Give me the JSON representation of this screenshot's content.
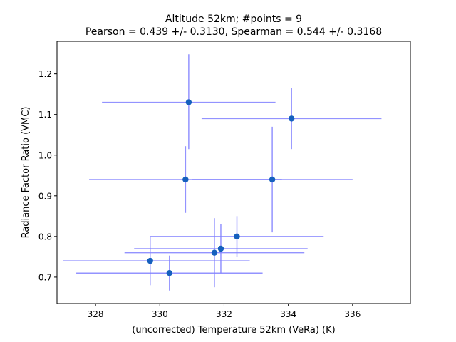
{
  "chart_data": {
    "type": "scatter",
    "title_line1": "Altitude 52km;  #points =  9",
    "title_line2": "Pearson =  0.439 +/-  0.3130, Spearman =  0.544 +/-  0.3168",
    "xlabel": "(uncorrected) Temperature 52km (VeRa) (K)",
    "ylabel": "Radiance Factor Ratio (VMC)",
    "xlim": [
      326.8,
      337.8
    ],
    "ylim": [
      0.635,
      1.28
    ],
    "x_ticks": [
      328,
      330,
      332,
      334,
      336
    ],
    "y_ticks": [
      0.7,
      0.8,
      0.9,
      1.0,
      1.1,
      1.2
    ],
    "x_tick_labels": [
      "328",
      "330",
      "332",
      "334",
      "336"
    ],
    "y_tick_labels": [
      "0.7",
      "0.8",
      "0.9",
      "1.0",
      "1.1",
      "1.2"
    ],
    "grid": false,
    "marker_color": "#1560bd",
    "errorbar_color": "#8080ff",
    "points": [
      {
        "x": 330.9,
        "y": 1.13,
        "xerr": [
          2.7,
          2.7
        ],
        "yerr": [
          0.115,
          0.118
        ]
      },
      {
        "x": 334.1,
        "y": 1.09,
        "xerr": [
          2.8,
          2.8
        ],
        "yerr": [
          0.075,
          0.075
        ]
      },
      {
        "x": 330.8,
        "y": 0.94,
        "xerr": [
          3.0,
          3.0
        ],
        "yerr": [
          0.082,
          0.082
        ]
      },
      {
        "x": 333.5,
        "y": 0.94,
        "xerr": [
          2.5,
          2.5
        ],
        "yerr": [
          0.13,
          0.13
        ]
      },
      {
        "x": 332.4,
        "y": 0.8,
        "xerr": [
          2.7,
          2.7
        ],
        "yerr": [
          0.05,
          0.05
        ]
      },
      {
        "x": 331.9,
        "y": 0.77,
        "xerr": [
          2.7,
          2.7
        ],
        "yerr": [
          0.06,
          0.06
        ]
      },
      {
        "x": 331.7,
        "y": 0.76,
        "xerr": [
          2.8,
          2.8
        ],
        "yerr": [
          0.085,
          0.085
        ]
      },
      {
        "x": 329.7,
        "y": 0.74,
        "xerr": [
          2.7,
          3.1
        ],
        "yerr": [
          0.06,
          0.06
        ]
      },
      {
        "x": 330.3,
        "y": 0.71,
        "xerr": [
          2.9,
          2.9
        ],
        "yerr": [
          0.043,
          0.043
        ]
      }
    ]
  }
}
